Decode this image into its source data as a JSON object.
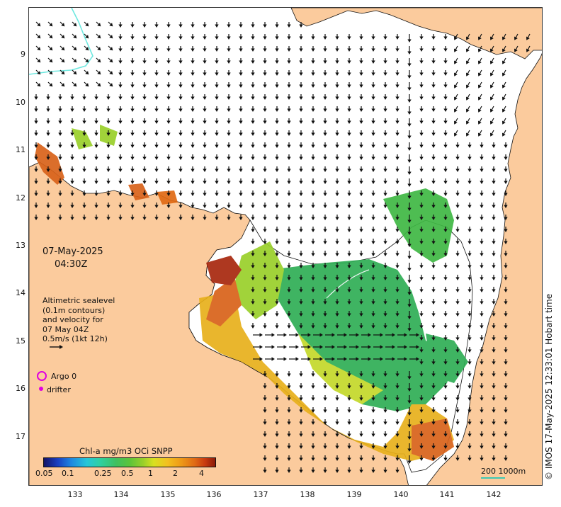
{
  "map": {
    "date": "07-May-2025",
    "time": "04:30Z",
    "info_lines": "Altimetric sealevel\n(0.1m contours)\nand velocity for\n07 May 04Z\n0.5m/s (1kt 12h)",
    "lat_ticks": [
      "9",
      "10",
      "11",
      "12",
      "13",
      "14",
      "15",
      "16",
      "17"
    ],
    "lon_ticks": [
      "133",
      "134",
      "135",
      "136",
      "137",
      "138",
      "139",
      "140",
      "141",
      "142"
    ],
    "legend": {
      "argo_label": "Argo 0",
      "drifter_label": "drifter",
      "argo_color": "#e000e0",
      "drifter_color": "#e000e0"
    },
    "colorbar": {
      "title": "Chl-a mg/m3 OCi SNPP",
      "labels": [
        "0.05",
        "0.1",
        "0.25",
        "0.5",
        "1",
        "2",
        "4"
      ]
    },
    "scale": {
      "label": "200  1000m",
      "color": "#3cc8b4"
    },
    "copyright": "© IMOS 17-May-2025 12:33:01 Hobart time",
    "colors": {
      "land": "#fbcb9d",
      "ocean": "#ffffff",
      "arrows": "#111111"
    }
  }
}
